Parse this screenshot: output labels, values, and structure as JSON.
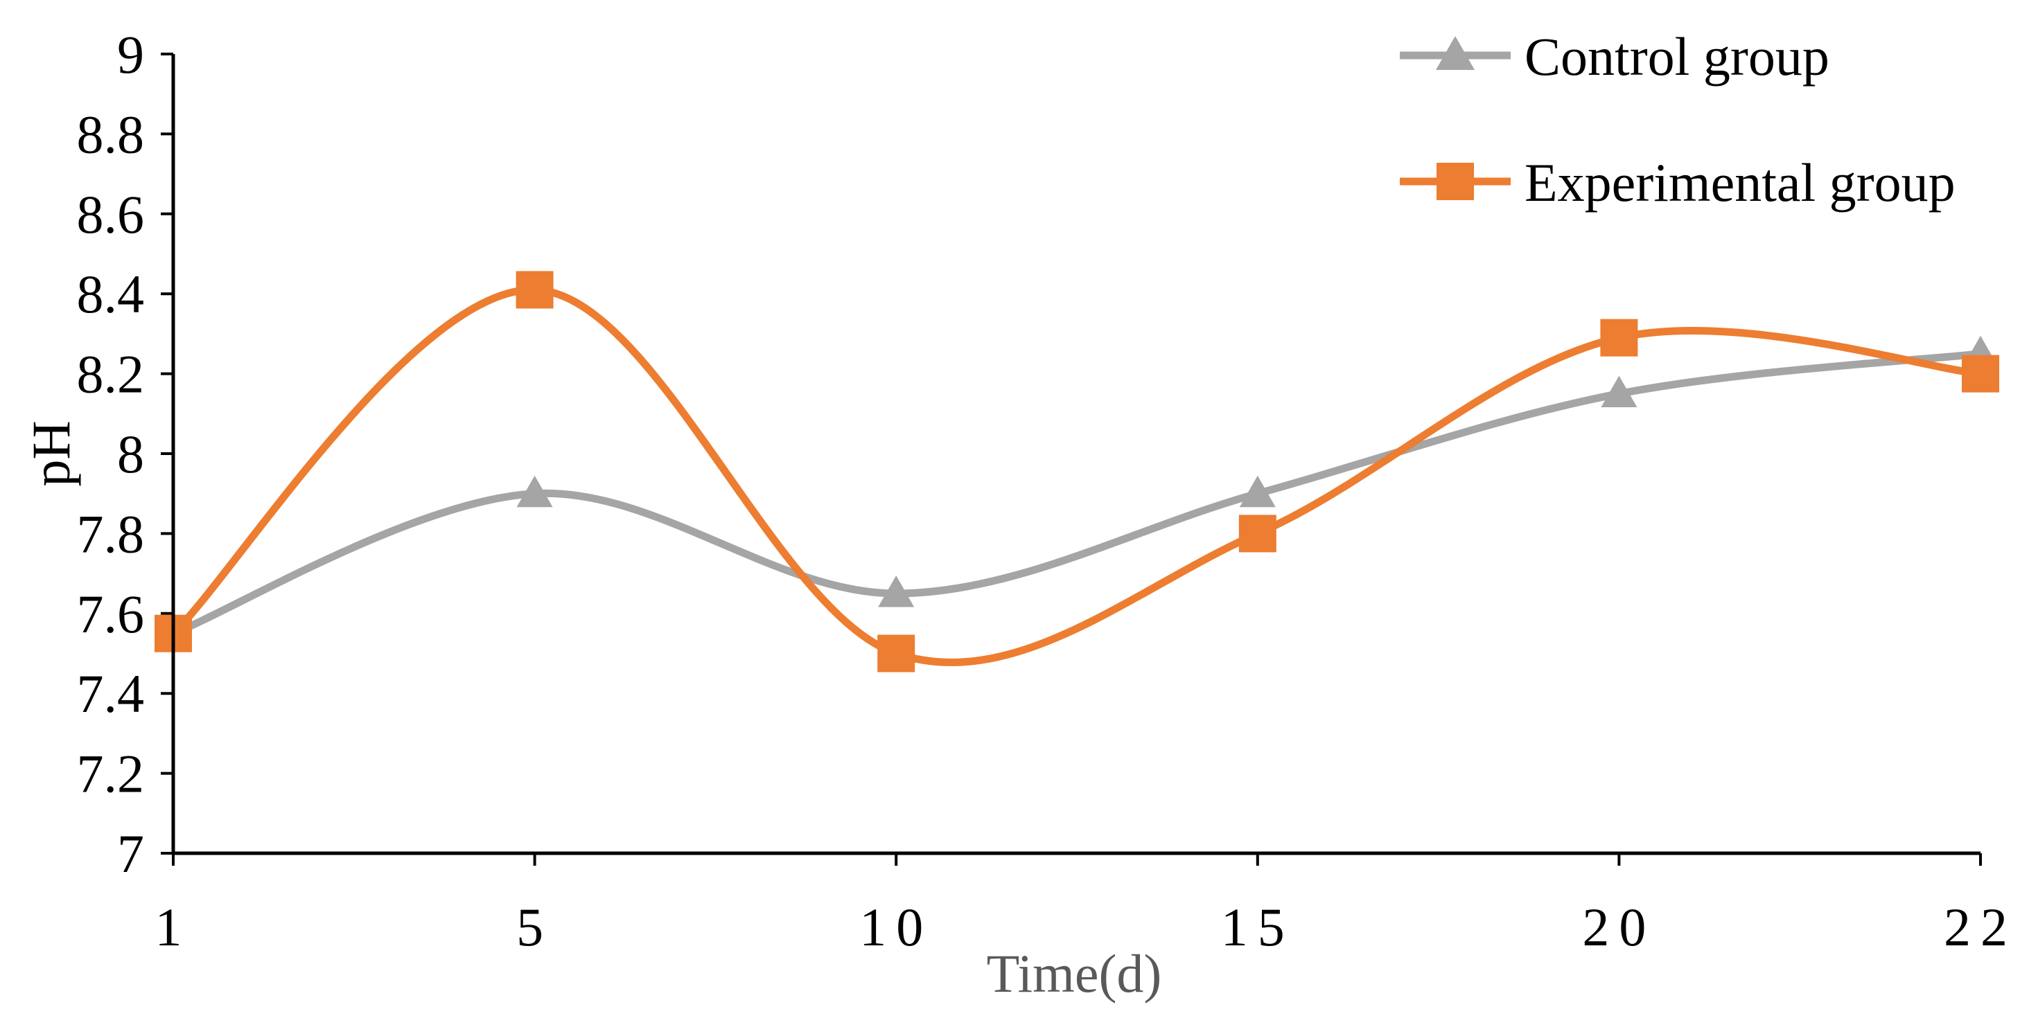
{
  "chart_data": {
    "type": "line",
    "smooth": true,
    "title": "",
    "xlabel": "Time(d)",
    "ylabel": "pH",
    "categories": [
      "1",
      "5",
      "10",
      "15",
      "20",
      "22"
    ],
    "ylim": [
      7,
      9
    ],
    "yticks": [
      "7",
      "7.2",
      "7.4",
      "7.6",
      "7.8",
      "8",
      "8.2",
      "8.4",
      "8.6",
      "8.8",
      "9"
    ],
    "grid": false,
    "legend_position": "top-right",
    "series": [
      {
        "name": "Control group",
        "marker": "triangle",
        "color": "#A5A5A5",
        "values": [
          7.55,
          7.9,
          7.65,
          7.9,
          8.15,
          8.25
        ]
      },
      {
        "name": "Experimental group",
        "marker": "square",
        "color": "#ED7D31",
        "values": [
          7.55,
          8.41,
          7.5,
          7.8,
          8.29,
          8.2
        ]
      }
    ],
    "axis_color": "#000000"
  }
}
